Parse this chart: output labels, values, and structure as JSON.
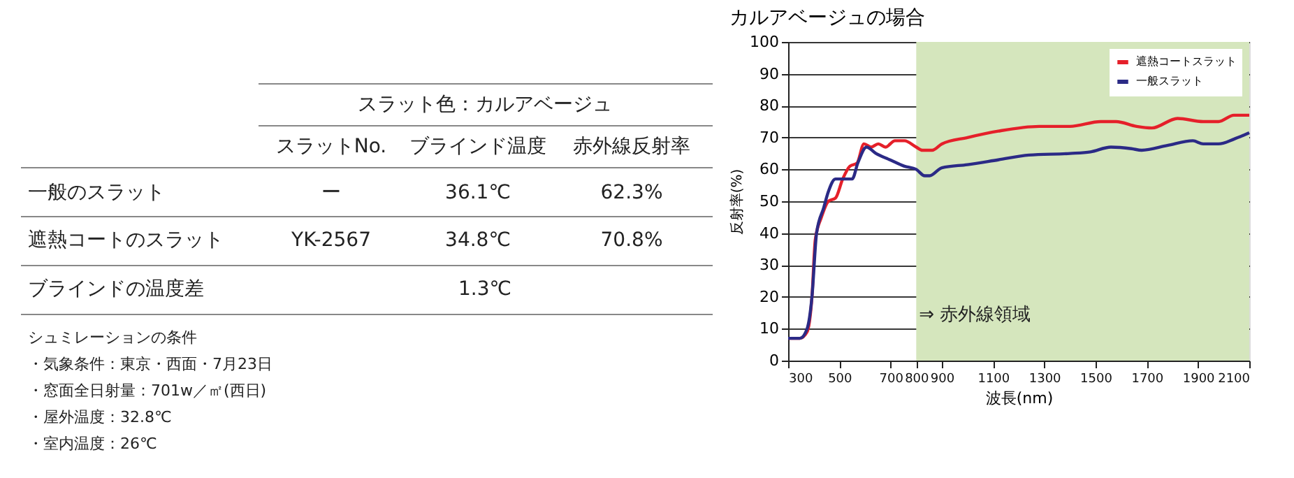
{
  "chart_data": [
    {
      "type": "other",
      "annotations": [
        "スラット色：カルアベージュ",
        "スラットNo.",
        "ブラインド温度",
        "赤外線反射率",
        "一般のスラット",
        "ー",
        "36.1℃",
        "62.3%",
        "遮熱コートのスラット",
        "YK-2567",
        "34.8℃",
        "70.8%",
        "ブラインドの温度差",
        "1.3℃",
        "シュミレーションの条件",
        "・気象条件：東京・西面・7月23日",
        "・窓面全日射量：701w／㎡(西日)",
        "・屋外温度：32.8℃",
        "・室内温度：26℃"
      ]
    },
    {
      "type": "line",
      "title": "カルアベージュの場合",
      "xlabel": "波長(nm)",
      "ylabel": "反射率(%)",
      "xlim": [
        300,
        2100
      ],
      "xticks": [
        300,
        500,
        700,
        800,
        900,
        1100,
        1300,
        1500,
        1700,
        1900,
        2100
      ],
      "ylim": [
        0,
        100
      ],
      "yticks": [
        0,
        10,
        20,
        30,
        40,
        50,
        60,
        70,
        80,
        90,
        100
      ],
      "grid": "y",
      "legend": "top right",
      "line_style": "solid",
      "bands": [
        {
          "axis": "x",
          "from": 800,
          "to": 2100,
          "label": "⇒ 赤外線領域",
          "color": "#d5e6bd"
        }
      ],
      "series": [
        {
          "name": "遮熱コートスラット",
          "color": "#e5202a",
          "x": [
            300,
            346,
            374,
            393,
            406,
            430,
            457,
            485,
            513,
            541,
            569,
            596,
            624,
            652,
            680,
            717,
            754,
            800,
            824,
            862,
            900,
            1000,
            1120,
            1280,
            1400,
            1520,
            1580,
            1660,
            1720,
            1820,
            1920,
            1980,
            2040,
            2100
          ],
          "values": [
            7,
            7,
            9,
            20,
            38,
            45,
            50,
            51,
            57,
            61,
            62,
            68,
            67,
            68,
            67,
            69,
            69,
            67,
            66,
            66,
            68,
            70,
            72,
            73.5,
            73.5,
            75,
            75,
            73.5,
            73,
            76,
            75,
            75,
            77,
            77
          ]
        },
        {
          "name": "一般スラット",
          "color": "#2b2a86",
          "x": [
            300,
            346,
            374,
            393,
            411,
            439,
            457,
            485,
            513,
            550,
            572,
            606,
            643,
            698,
            754,
            800,
            833,
            852,
            900,
            1000,
            1120,
            1240,
            1400,
            1480,
            1560,
            1640,
            1680,
            1780,
            1880,
            1920,
            1980,
            2040,
            2100
          ],
          "values": [
            7,
            7,
            10,
            20,
            40,
            48,
            53,
            57,
            57,
            57,
            62,
            67,
            65,
            63,
            61,
            60,
            58,
            58,
            60.5,
            61.5,
            63,
            64.5,
            65,
            65.5,
            67,
            66.5,
            66,
            67.5,
            69,
            68,
            68,
            69.5,
            71.5
          ]
        }
      ]
    }
  ]
}
